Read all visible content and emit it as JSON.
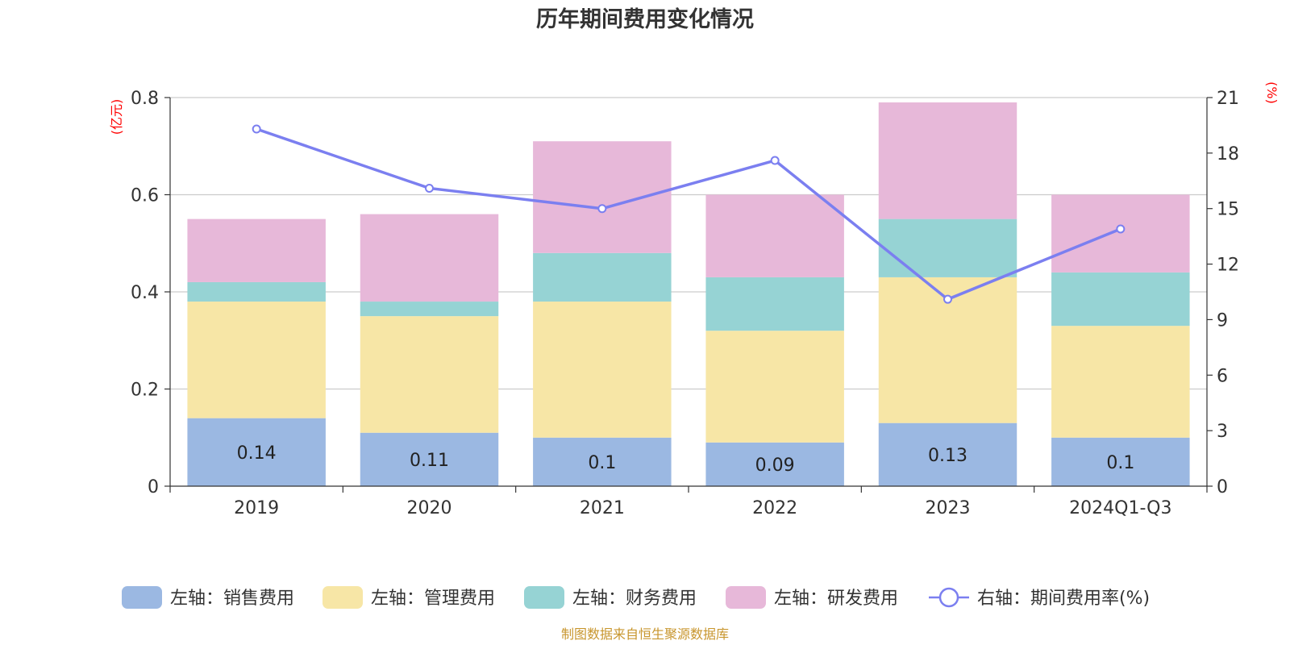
{
  "chart_data": {
    "type": "bar",
    "stacked": true,
    "title": "历年期间费用变化情况",
    "categories": [
      "2019",
      "2020",
      "2021",
      "2022",
      "2023",
      "2024Q1-Q3"
    ],
    "left_axis": {
      "unit": "(亿元)",
      "ylim": [
        0,
        0.8
      ],
      "ticks": [
        "0",
        "0.2",
        "0.4",
        "0.6",
        "0.8"
      ]
    },
    "right_axis": {
      "unit": "(%)",
      "ylim": [
        0,
        21
      ],
      "ticks": [
        "0",
        "3",
        "6",
        "9",
        "12",
        "15",
        "18",
        "21"
      ]
    },
    "series": [
      {
        "name": "左轴：销售费用",
        "axis": "left",
        "color": "#9bb8e2",
        "values": [
          0.14,
          0.11,
          0.1,
          0.09,
          0.13,
          0.1
        ],
        "labels": [
          "0.14",
          "0.11",
          "0.1",
          "0.09",
          "0.13",
          "0.1"
        ]
      },
      {
        "name": "左轴：管理费用",
        "axis": "left",
        "color": "#f7e6a6",
        "values": [
          0.24,
          0.24,
          0.28,
          0.23,
          0.3,
          0.23
        ]
      },
      {
        "name": "左轴：财务费用",
        "axis": "left",
        "color": "#96d3d4",
        "values": [
          0.04,
          0.03,
          0.1,
          0.11,
          0.12,
          0.11
        ]
      },
      {
        "name": "左轴：研发费用",
        "axis": "left",
        "color": "#e7b8d9",
        "values": [
          0.13,
          0.18,
          0.23,
          0.17,
          0.24,
          0.16
        ]
      },
      {
        "name": "右轴：期间费用率(%)",
        "axis": "right",
        "type": "line",
        "color": "#7b7ff0",
        "values": [
          19.3,
          16.1,
          15.0,
          17.6,
          10.1,
          13.9
        ]
      }
    ],
    "source": "制图数据来自恒生聚源数据库"
  }
}
